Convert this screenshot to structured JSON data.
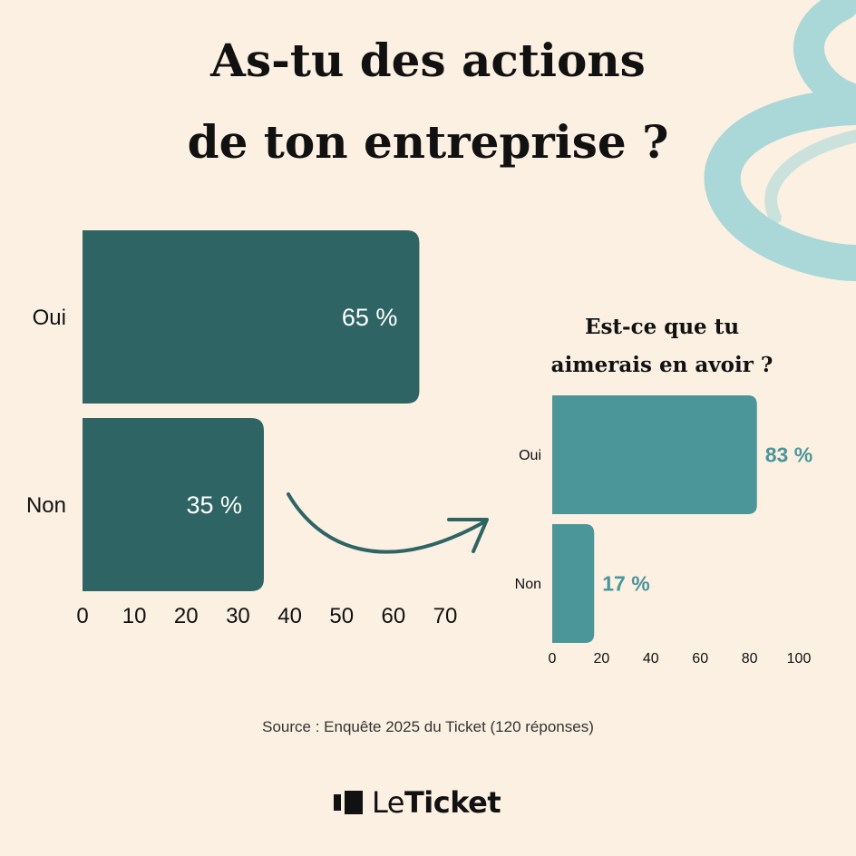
{
  "title_line1": "As-tu des actions",
  "title_line2": "de ton entreprise ?",
  "source": "Source : Enquête 2025 du Ticket (120 réponses)",
  "logo": {
    "part1": "Le",
    "part2": "Ticket"
  },
  "colors": {
    "background": "#fbf0e2",
    "main_bar": "#2e6464",
    "secondary_bar": "#4a9699",
    "swirl": "#9dd3d6"
  },
  "icons": {
    "arrow": "curved-arrow-icon",
    "swirl": "brush-swirl-decoration",
    "logo": "leticket-logo-icon"
  },
  "chart_data": [
    {
      "type": "bar",
      "orientation": "horizontal",
      "title": "As-tu des actions de ton entreprise ?",
      "categories": [
        "Oui",
        "Non"
      ],
      "values": [
        65,
        35
      ],
      "labels": [
        "65 %",
        "35 %"
      ],
      "xlim": [
        0,
        70
      ],
      "xticks": [
        0,
        10,
        20,
        30,
        40,
        50,
        60,
        70
      ],
      "grid": false,
      "legend": "none"
    },
    {
      "type": "bar",
      "orientation": "horizontal",
      "title": "Est-ce que tu aimerais en avoir ?",
      "title_line1": "Est-ce que tu",
      "title_line2": "aimerais en avoir ?",
      "categories": [
        "Oui",
        "Non"
      ],
      "values": [
        83,
        17
      ],
      "labels": [
        "83 %",
        "17 %"
      ],
      "xlim": [
        0,
        100
      ],
      "xticks": [
        0,
        20,
        40,
        60,
        80,
        100
      ],
      "grid": false,
      "legend": "none"
    }
  ]
}
